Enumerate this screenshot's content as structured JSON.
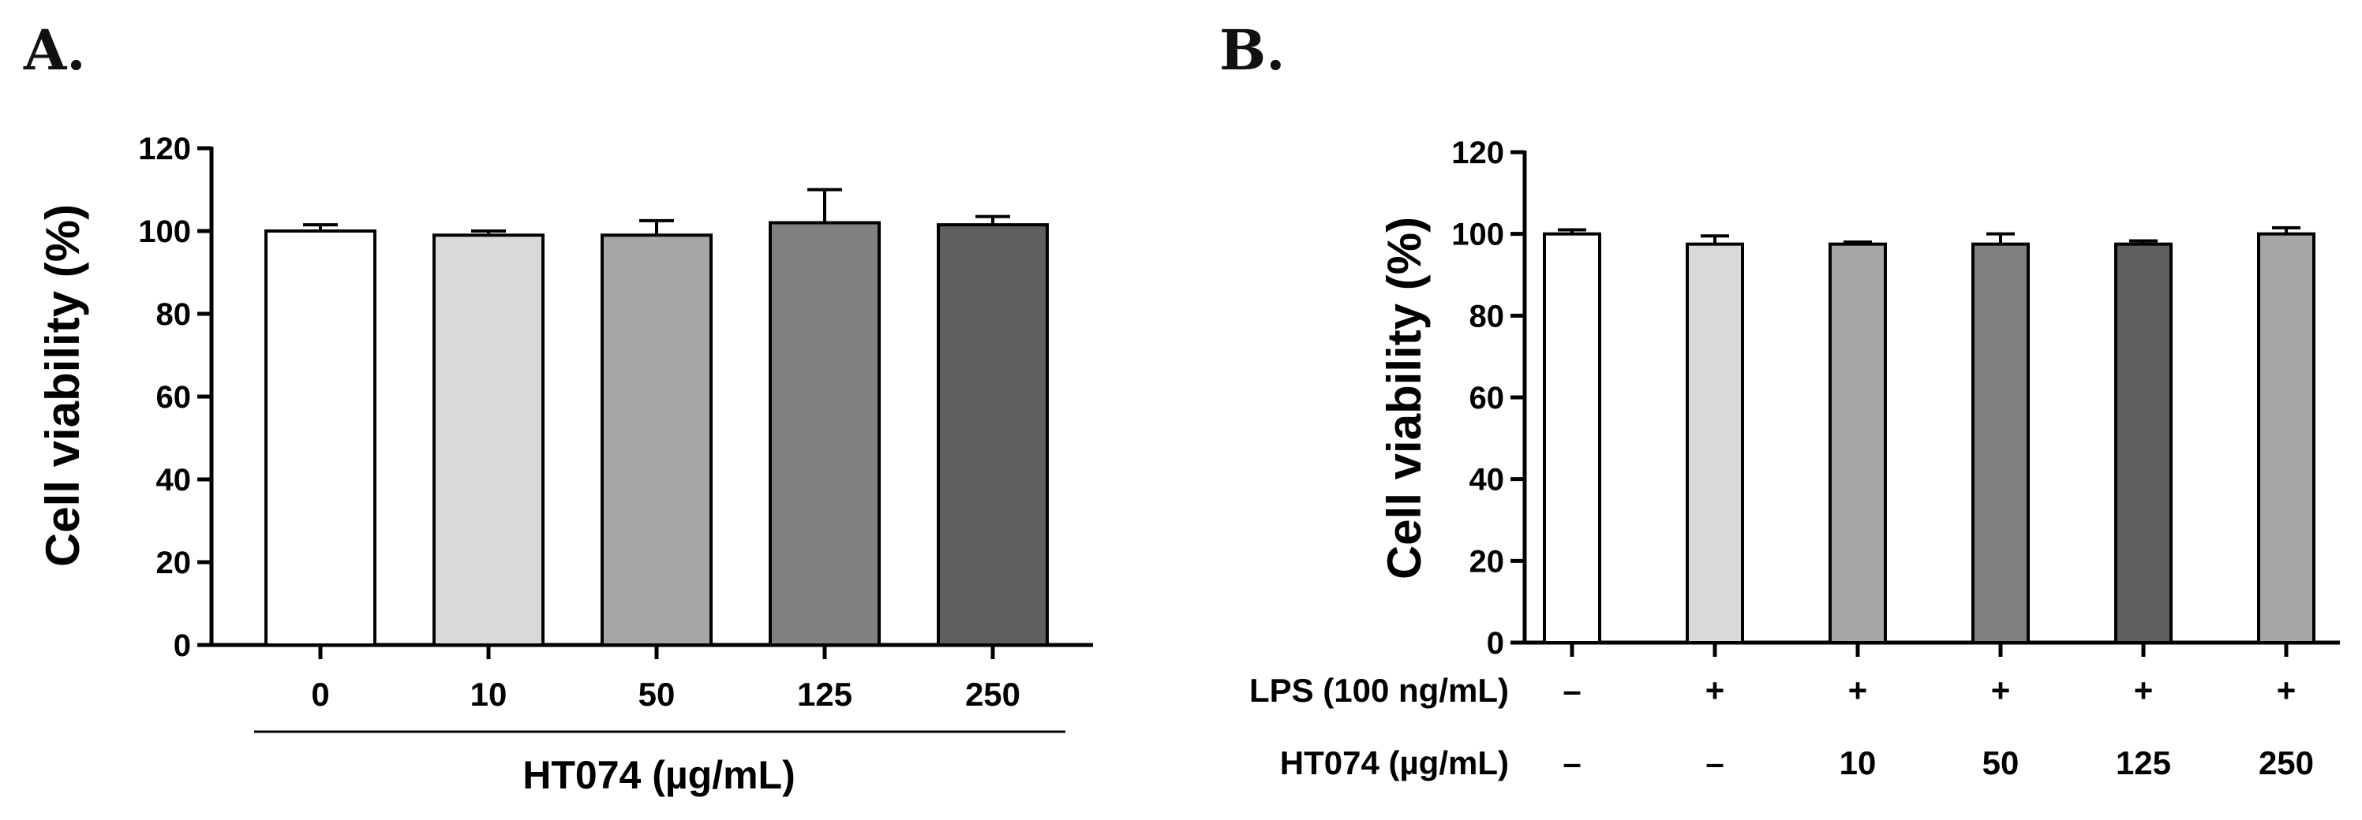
{
  "chart_data": [
    {
      "panel": "A.",
      "type": "bar",
      "title": "",
      "ylabel": "Cell viability (%)",
      "xlabel": "HT074 (µg/mL)",
      "ylim": [
        0,
        120
      ],
      "yticks": [
        "0",
        "20",
        "40",
        "60",
        "80",
        "100",
        "120"
      ],
      "categories": [
        "0",
        "10",
        "50",
        "125",
        "250"
      ],
      "values": [
        100,
        99,
        99,
        102,
        101.5
      ],
      "errors": [
        1.5,
        1,
        3.5,
        8,
        2
      ],
      "colors": [
        "#ffffff",
        "#d9d9d9",
        "#a6a6a8",
        "#808080",
        "#5f5f5f"
      ]
    },
    {
      "panel": "B.",
      "type": "bar",
      "title": "",
      "ylabel": "Cell viability (%)",
      "ylim": [
        0,
        120
      ],
      "yticks": [
        "0",
        "20",
        "40",
        "60",
        "80",
        "100",
        "120"
      ],
      "rows": [
        {
          "label": "LPS (100 ng/mL)",
          "values": [
            "–",
            "+",
            "+",
            "+",
            "+",
            "+"
          ]
        },
        {
          "label": "HT074 (µg/mL)",
          "values": [
            "–",
            "–",
            "10",
            "50",
            "125",
            "250"
          ]
        }
      ],
      "values": [
        100,
        97.5,
        97.5,
        97.5,
        97.5,
        100
      ],
      "errors": [
        1,
        2,
        0.5,
        2.5,
        0.8,
        1.5
      ],
      "colors": [
        "#ffffff",
        "#d9d9d9",
        "#a6a6a8",
        "#808080",
        "#5f5f5f",
        "#a6a6a8"
      ]
    }
  ]
}
